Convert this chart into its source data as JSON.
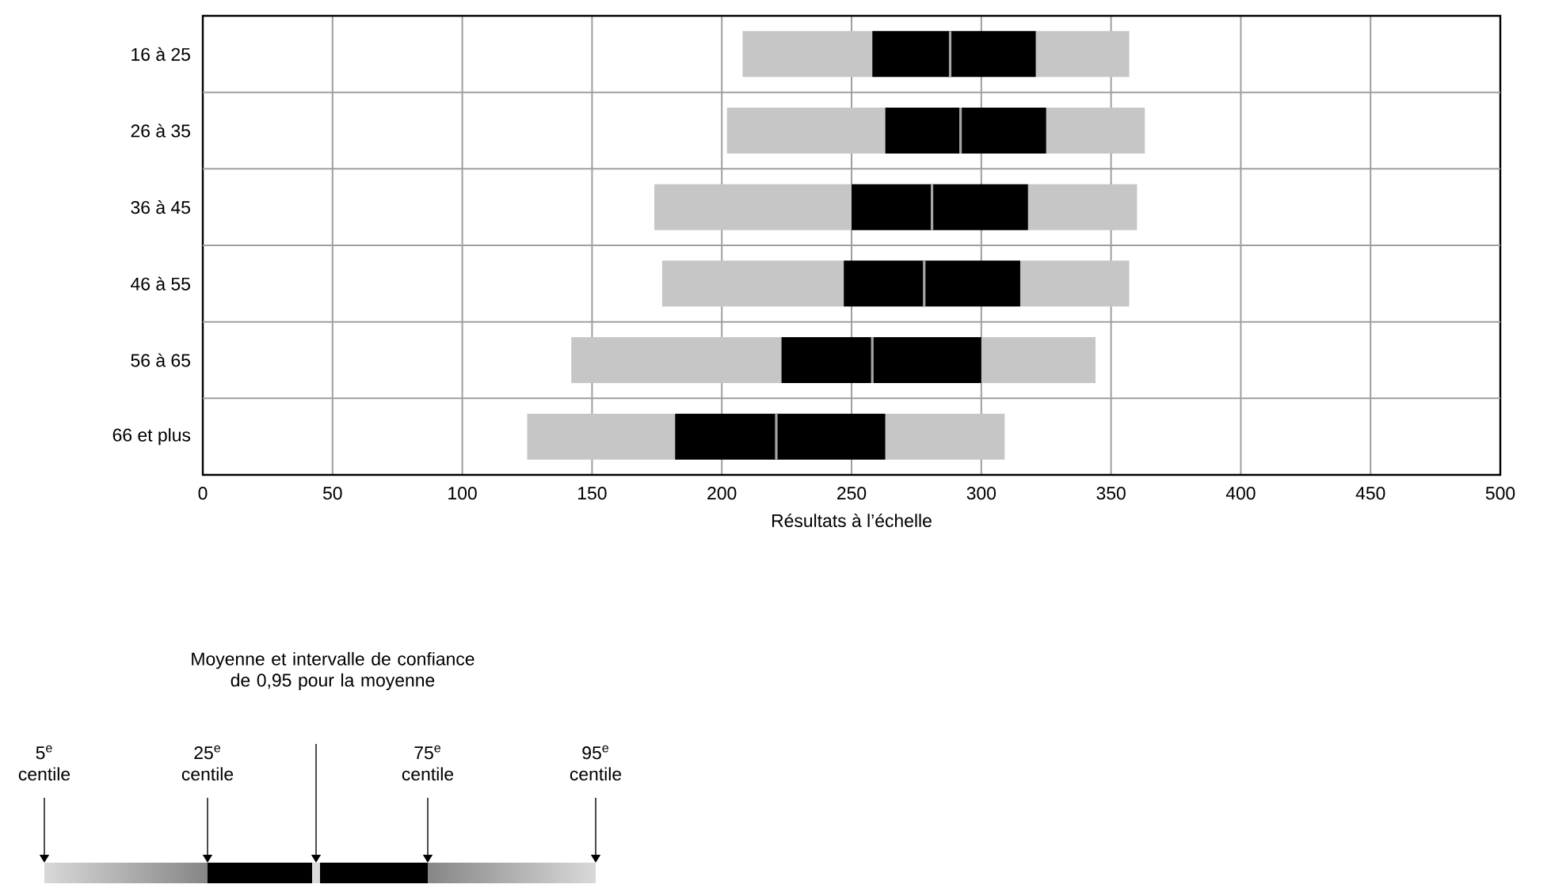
{
  "chart_data": {
    "type": "box",
    "orientation": "horizontal",
    "xlabel": "Résultats à l’échelle",
    "categories": [
      "16 à 25",
      "26 à 35",
      "36 à 45",
      "46 à 55",
      "56 à 65",
      "66 et plus"
    ],
    "boxes": [
      {
        "low": 208,
        "q1": 258,
        "q3": 321,
        "high": 357,
        "mean": 288
      },
      {
        "low": 202,
        "q1": 263,
        "q3": 325,
        "high": 363,
        "mean": 292
      },
      {
        "low": 174,
        "q1": 250,
        "q3": 318,
        "high": 360,
        "mean": 281
      },
      {
        "low": 177,
        "q1": 247,
        "q3": 315,
        "high": 357,
        "mean": 278
      },
      {
        "low": 142,
        "q1": 223,
        "q3": 300,
        "high": 344,
        "mean": 258
      },
      {
        "low": 125,
        "q1": 182,
        "q3": 263,
        "high": 309,
        "mean": 221
      }
    ],
    "color": "#000000",
    "xlim": [
      0,
      500
    ],
    "xticks": [
      0,
      50,
      100,
      150,
      200,
      250,
      300,
      350,
      400,
      450,
      500
    ],
    "grid": true,
    "annotations": [
      "Moyenne et intervalle de confiance de 0,95 pour la moyenne",
      "5$^{e}$ centile",
      "25$^{e}$ centile",
      "75$^{e}$ centile",
      "95$^{e}$ centile"
    ]
  }
}
